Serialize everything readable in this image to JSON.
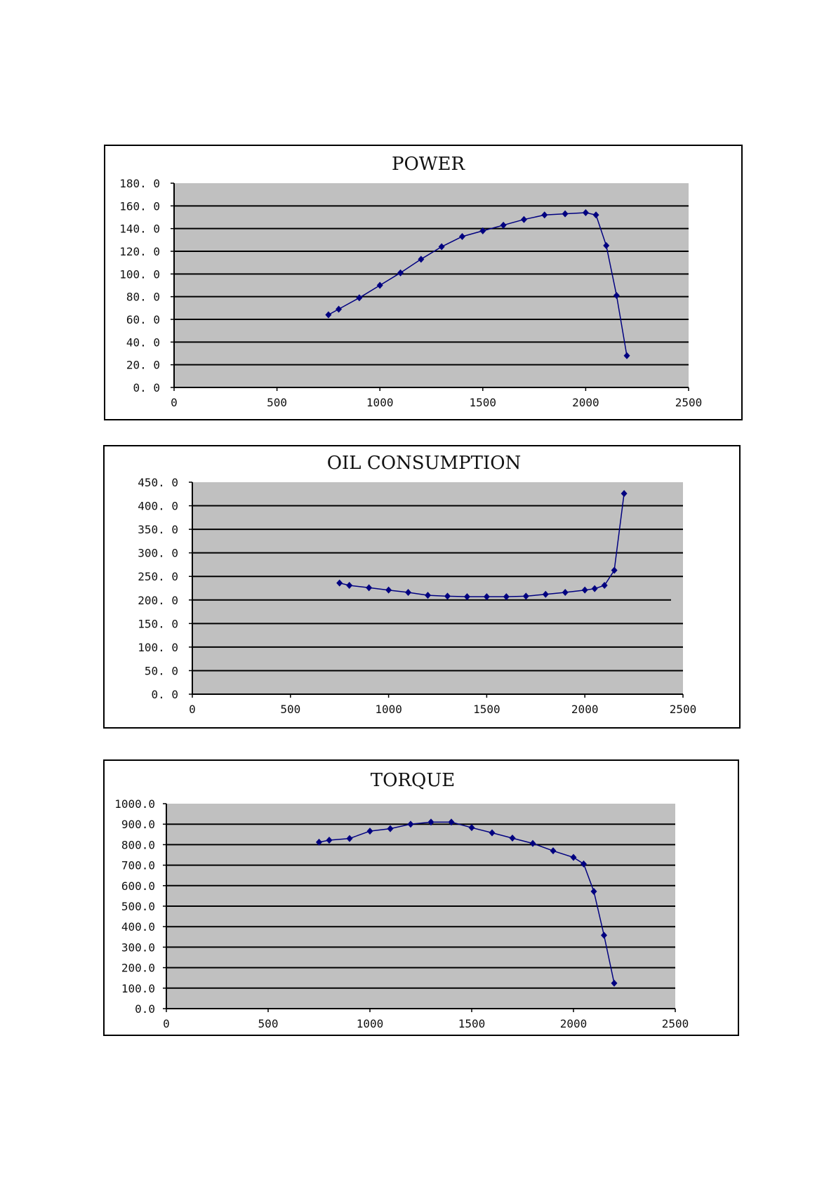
{
  "chart_data": [
    {
      "type": "line",
      "title": "POWER",
      "xlabel": "",
      "ylabel": "",
      "xlim": [
        0,
        2500
      ],
      "ylim": [
        0,
        180
      ],
      "xticks": [
        "0",
        "500",
        "1000",
        "1500",
        "2000",
        "2500"
      ],
      "yticks": [
        "0. 0",
        "20. 0",
        "40. 0",
        "60. 0",
        "80. 0",
        "100. 0",
        "120. 0",
        "140. 0",
        "160. 0",
        "180. 0"
      ],
      "ystep": 20,
      "grid": true,
      "x": [
        750,
        800,
        900,
        1000,
        1100,
        1200,
        1300,
        1400,
        1500,
        1600,
        1700,
        1800,
        1900,
        2000,
        2050,
        2100,
        2150,
        2200
      ],
      "values": [
        64,
        69,
        79,
        90,
        101,
        113,
        124,
        133,
        138,
        143,
        148,
        152,
        153,
        154,
        152,
        125,
        81,
        28
      ],
      "colors": {
        "plot_bg": "#c0c0c0",
        "line": "#000080",
        "grid": "#000000"
      }
    },
    {
      "type": "line",
      "title": "OIL  CONSUMPTION",
      "xlabel": "",
      "ylabel": "",
      "xlim": [
        0,
        2500
      ],
      "ylim": [
        0,
        450
      ],
      "xticks": [
        "0",
        "500",
        "1000",
        "1500",
        "2000",
        "2500"
      ],
      "yticks": [
        "0. 0",
        "50. 0",
        "100. 0",
        "150. 0",
        "200. 0",
        "250. 0",
        "300. 0",
        "350. 0",
        "400. 0",
        "450. 0"
      ],
      "ystep": 50,
      "grid": true,
      "x": [
        750,
        800,
        900,
        1000,
        1100,
        1200,
        1300,
        1400,
        1500,
        1600,
        1700,
        1800,
        1900,
        2000,
        2050,
        2100,
        2150,
        2200
      ],
      "values": [
        236,
        231,
        226,
        221,
        216,
        210,
        208,
        207,
        207,
        207,
        208,
        212,
        216,
        221,
        224,
        231,
        263,
        426
      ],
      "colors": {
        "plot_bg": "#c0c0c0",
        "line": "#000080",
        "grid": "#000000"
      }
    },
    {
      "type": "line",
      "title": "TORQUE",
      "xlabel": "",
      "ylabel": "",
      "xlim": [
        0,
        2500
      ],
      "ylim": [
        0,
        1000
      ],
      "xticks": [
        "0",
        "500",
        "1000",
        "1500",
        "2000",
        "2500"
      ],
      "yticks": [
        "0.0",
        "100.0",
        "200.0",
        "300.0",
        "400.0",
        "500.0",
        "600.0",
        "700.0",
        "800.0",
        "900.0",
        "1000.0"
      ],
      "ystep": 100,
      "grid": true,
      "x": [
        750,
        800,
        900,
        1000,
        1100,
        1200,
        1300,
        1400,
        1500,
        1600,
        1700,
        1800,
        1900,
        2000,
        2050,
        2100,
        2150,
        2200
      ],
      "values": [
        812,
        822,
        830,
        866,
        878,
        900,
        910,
        910,
        883,
        858,
        832,
        806,
        770,
        738,
        706,
        572,
        358,
        124
      ],
      "colors": {
        "plot_bg": "#c0c0c0",
        "line": "#000080",
        "grid": "#000000"
      }
    }
  ]
}
